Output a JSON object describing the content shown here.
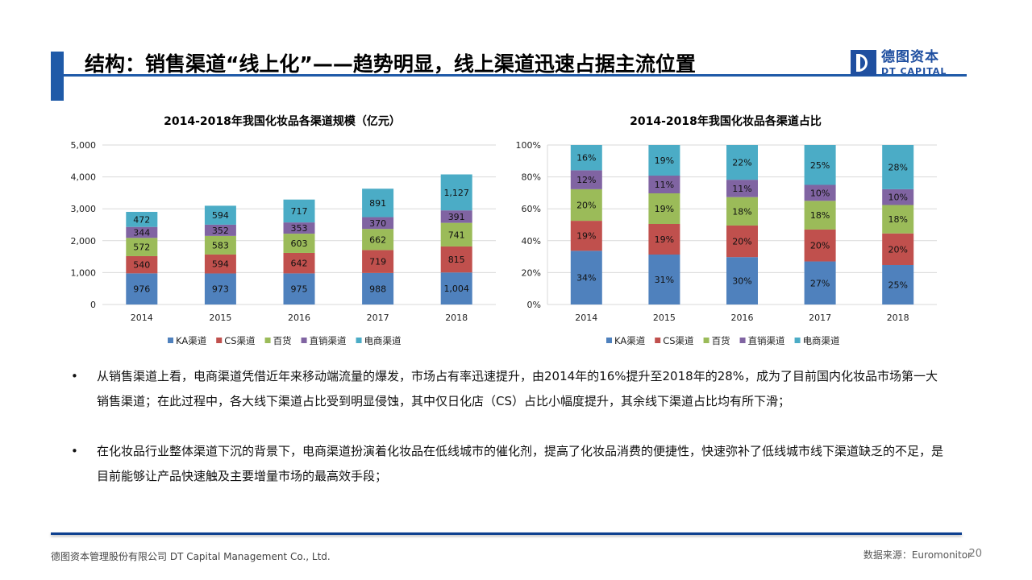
{
  "header": {
    "title": "结构：销售渠道“线上化”——趋势明显，线上渠道迅速占据主流位置",
    "logo_cn": "德图资本",
    "logo_en": "DT CAPITAL"
  },
  "colors": {
    "accent": "#1f5aa8",
    "KA": "#4f81bd",
    "CS": "#c0504d",
    "dept": "#9bbb59",
    "direct": "#8064a2",
    "ecom": "#4bacc6"
  },
  "chart_data": [
    {
      "type": "bar",
      "stacked": true,
      "title": "2014-2018年我国化妆品各渠道规模（亿元）",
      "xlabel": "",
      "ylabel": "",
      "categories": [
        "2014",
        "2015",
        "2016",
        "2017",
        "2018"
      ],
      "ylim": [
        0,
        5000
      ],
      "yticks": [
        "0",
        "1,000",
        "2,000",
        "3,000",
        "4,000",
        "5,000"
      ],
      "grid": true,
      "legend": "bottom",
      "series": [
        {
          "name": "KA渠道",
          "values": [
            976,
            973,
            975,
            988,
            1004
          ],
          "labels": [
            "976",
            "973",
            "975",
            "988",
            "1,004"
          ]
        },
        {
          "name": "CS渠道",
          "values": [
            540,
            594,
            642,
            719,
            815
          ],
          "labels": [
            "540",
            "594",
            "642",
            "719",
            "815"
          ]
        },
        {
          "name": "百货",
          "values": [
            572,
            583,
            603,
            662,
            741
          ],
          "labels": [
            "572",
            "583",
            "603",
            "662",
            "741"
          ]
        },
        {
          "name": "直销渠道",
          "values": [
            344,
            352,
            353,
            370,
            391
          ],
          "labels": [
            "344",
            "352",
            "353",
            "370",
            "391"
          ]
        },
        {
          "name": "电商渠道",
          "values": [
            472,
            594,
            717,
            891,
            1127
          ],
          "labels": [
            "472",
            "594",
            "717",
            "891",
            "1,127"
          ]
        }
      ]
    },
    {
      "type": "bar",
      "stacked": true,
      "percent": true,
      "title": "2014-2018年我国化妆品各渠道占比",
      "xlabel": "",
      "ylabel": "",
      "categories": [
        "2014",
        "2015",
        "2016",
        "2017",
        "2018"
      ],
      "ylim": [
        0,
        100
      ],
      "yticks": [
        "0%",
        "20%",
        "40%",
        "60%",
        "80%",
        "100%"
      ],
      "grid": true,
      "legend": "bottom",
      "series": [
        {
          "name": "KA渠道",
          "values": [
            34,
            31,
            30,
            27,
            25
          ],
          "labels": [
            "34%",
            "31%",
            "30%",
            "27%",
            "25%"
          ]
        },
        {
          "name": "CS渠道",
          "values": [
            19,
            19,
            20,
            20,
            20
          ],
          "labels": [
            "19%",
            "19%",
            "20%",
            "20%",
            "20%"
          ]
        },
        {
          "name": "百货",
          "values": [
            20,
            19,
            18,
            18,
            18
          ],
          "labels": [
            "20%",
            "19%",
            "18%",
            "18%",
            "18%"
          ]
        },
        {
          "name": "直销渠道",
          "values": [
            12,
            11,
            11,
            10,
            10
          ],
          "labels": [
            "12%",
            "11%",
            "11%",
            "10%",
            "10%"
          ]
        },
        {
          "name": "电商渠道",
          "values": [
            16,
            19,
            22,
            25,
            28
          ],
          "labels": [
            "16%",
            "19%",
            "22%",
            "25%",
            "28%"
          ]
        }
      ]
    }
  ],
  "bullets": [
    {
      "marker": "•",
      "text": "从销售渠道上看，电商渠道凭借近年来移动端流量的爆发，市场占有率迅速提升，由2014年的16%提升至2018年的28%，成为了目前国内化妆品市场第一大销售渠道；在此过程中，各大线下渠道占比受到明显侵蚀，其中仅日化店（CS）占比小幅度提升，其余线下渠道占比均有所下滑；"
    },
    {
      "marker": "•",
      "text": "在化妆品行业整体渠道下沉的背景下，电商渠道扮演着化妆品在低线城市的催化剂，提高了化妆品消费的便捷性，快速弥补了低线城市线下渠道缺乏的不足，是目前能够让产品快速触及主要增量市场的最高效手段；"
    }
  ],
  "footer": {
    "company": "德图资本管理股份有限公司  DT Capital Management  Co., Ltd.",
    "source": "数据来源：Euromonitor",
    "page": "20"
  }
}
